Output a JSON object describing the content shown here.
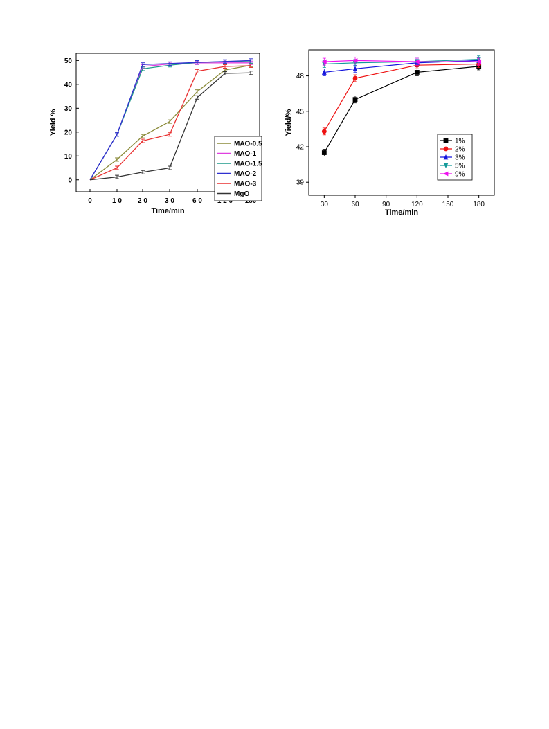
{
  "chart_data": [
    {
      "type": "line",
      "xlabel": "Time/min",
      "ylabel": "Yield %",
      "categories": [
        "0",
        "1 0",
        "2 0",
        "3 0",
        "6 0",
        "1 2 0",
        "180"
      ],
      "ylim": [
        -5,
        53
      ],
      "yticks": [
        0,
        10,
        20,
        30,
        40,
        50
      ],
      "legend_position": "bottom-right",
      "series": [
        {
          "name": "MAO-0.5",
          "color": "#8b8b3a",
          "values": [
            0,
            8.5,
            18.3,
            24.4,
            37,
            46,
            48
          ]
        },
        {
          "name": "MAO-1",
          "color": "#e040e0",
          "values": [
            0,
            19,
            47.5,
            48.5,
            49,
            49,
            49
          ]
        },
        {
          "name": "MAO-1.5",
          "color": "#1e9a8a",
          "values": [
            0,
            19,
            46.5,
            48,
            49.2,
            49.5,
            49.5
          ]
        },
        {
          "name": "MAO-2",
          "color": "#3030d0",
          "values": [
            0,
            19,
            48.3,
            48.7,
            49.2,
            49.6,
            50
          ]
        },
        {
          "name": "MAO-3",
          "color": "#e83030",
          "values": [
            0,
            5,
            16.3,
            19,
            45.5,
            47.5,
            47.8
          ]
        },
        {
          "name": "MgO",
          "color": "#333333",
          "values": [
            0,
            1.2,
            3.2,
            5,
            34.5,
            44.6,
            44.8
          ]
        }
      ]
    },
    {
      "type": "line",
      "xlabel": "Time/min",
      "ylabel": "Yield/%",
      "x": [
        30,
        60,
        120,
        180
      ],
      "xlim": [
        15,
        195
      ],
      "xticks": [
        30,
        60,
        90,
        120,
        150,
        180
      ],
      "ylim": [
        37.9,
        50.2
      ],
      "yticks": [
        39,
        42,
        45,
        48
      ],
      "legend_position": "right-middle",
      "series": [
        {
          "name": "1%",
          "color": "#000000",
          "marker": "square",
          "values": [
            41.5,
            46.0,
            48.3,
            48.8
          ]
        },
        {
          "name": "2%",
          "color": "#ee1111",
          "marker": "circle",
          "values": [
            43.3,
            47.8,
            48.9,
            49.0
          ]
        },
        {
          "name": "3%",
          "color": "#1515dd",
          "marker": "triangle-up",
          "values": [
            48.3,
            48.6,
            49.1,
            49.3
          ]
        },
        {
          "name": "5%",
          "color": "#139a9a",
          "marker": "triangle-down",
          "values": [
            49.0,
            49.1,
            49.2,
            49.4
          ]
        },
        {
          "name": "9%",
          "color": "#ee11ee",
          "marker": "triangle-left",
          "values": [
            49.2,
            49.3,
            49.2,
            49.2
          ]
        }
      ]
    }
  ]
}
